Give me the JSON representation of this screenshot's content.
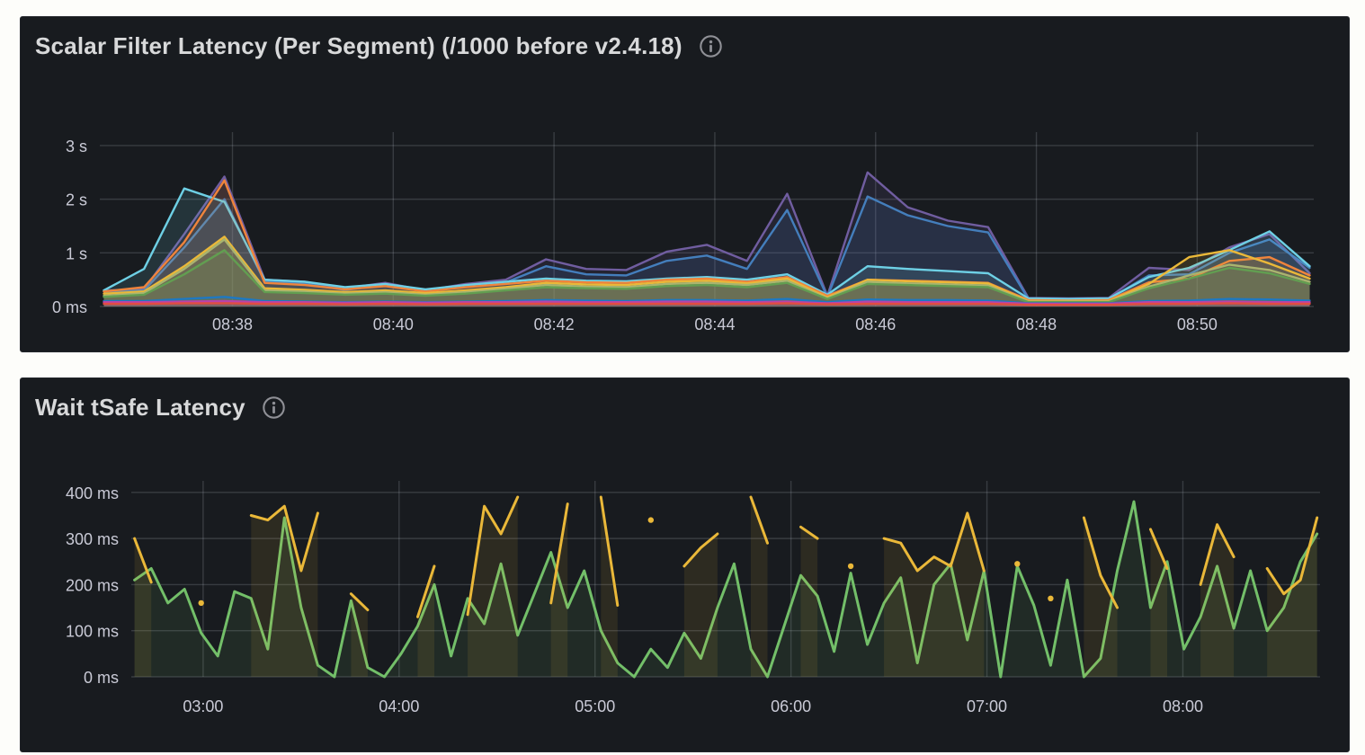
{
  "panels": [
    {
      "title": "Scalar Filter Latency (Per Segment) (/1000 before v2.4.18)",
      "info_icon": "info"
    },
    {
      "title": "Wait tSafe Latency",
      "info_icon": "info"
    }
  ],
  "colors": {
    "page_bg": "#fdfdfa",
    "panel_bg": "#181b1f",
    "title_text": "#d8d9da",
    "axis_text": "#c9cad6",
    "grid": "rgba(204,208,222,0.18)",
    "icon": "#8f9096"
  },
  "chart_data": [
    {
      "type": "line",
      "title": "Scalar Filter Latency (Per Segment) (/1000 before v2.4.18)",
      "unit": "seconds",
      "x_axis": "time of day (hh:mm)",
      "x_range": [
        36.35,
        51.45
      ],
      "x_start": 36.4,
      "x_step": 0.5,
      "x_ticks": [
        {
          "v": 38,
          "label": "08:38"
        },
        {
          "v": 40,
          "label": "08:40"
        },
        {
          "v": 42,
          "label": "08:42"
        },
        {
          "v": 44,
          "label": "08:44"
        },
        {
          "v": 46,
          "label": "08:46"
        },
        {
          "v": 48,
          "label": "08:48"
        },
        {
          "v": 50,
          "label": "08:50"
        }
      ],
      "y_ticks": [
        {
          "v": 0,
          "label": "0 ms"
        },
        {
          "v": 1,
          "label": "1 s"
        },
        {
          "v": 2,
          "label": "2 s"
        },
        {
          "v": 3,
          "label": "3 s"
        }
      ],
      "y_max": 3.25,
      "grid": true,
      "legend_position": "none",
      "fill_opacity": 0.14,
      "line_width": 2.4,
      "series": [
        {
          "name": "segment-purple",
          "color": "#705DA0",
          "values": [
            0.3,
            0.32,
            1.35,
            2.42,
            0.5,
            0.46,
            0.34,
            0.44,
            0.3,
            0.42,
            0.5,
            0.88,
            0.7,
            0.68,
            1.02,
            1.15,
            0.85,
            2.1,
            0.2,
            2.5,
            1.85,
            1.6,
            1.48,
            0.16,
            0.15,
            0.16,
            0.72,
            0.68,
            1.1,
            1.35,
            0.62
          ]
        },
        {
          "name": "segment-blue",
          "color": "#447EBC",
          "values": [
            0.28,
            0.3,
            1.1,
            2.0,
            0.46,
            0.42,
            0.31,
            0.4,
            0.28,
            0.38,
            0.45,
            0.75,
            0.6,
            0.58,
            0.85,
            0.95,
            0.7,
            1.8,
            0.18,
            2.05,
            1.7,
            1.5,
            1.38,
            0.14,
            0.13,
            0.14,
            0.58,
            0.6,
            1.0,
            1.25,
            0.72
          ]
        },
        {
          "name": "segment-cyan",
          "color": "#6ED0E5",
          "values": [
            0.3,
            0.7,
            2.2,
            1.95,
            0.5,
            0.46,
            0.36,
            0.42,
            0.32,
            0.4,
            0.46,
            0.52,
            0.48,
            0.47,
            0.52,
            0.55,
            0.5,
            0.6,
            0.22,
            0.75,
            0.7,
            0.66,
            0.62,
            0.15,
            0.14,
            0.15,
            0.55,
            0.72,
            1.05,
            1.4,
            0.75
          ]
        },
        {
          "name": "segment-orange",
          "color": "#EF843C",
          "values": [
            0.28,
            0.36,
            1.2,
            2.35,
            0.44,
            0.4,
            0.32,
            0.38,
            0.28,
            0.36,
            0.42,
            0.48,
            0.45,
            0.44,
            0.5,
            0.52,
            0.46,
            0.55,
            0.2,
            0.5,
            0.48,
            0.46,
            0.44,
            0.12,
            0.11,
            0.12,
            0.45,
            0.52,
            0.85,
            0.92,
            0.58
          ]
        },
        {
          "name": "segment-gold",
          "color": "#EAB839",
          "values": [
            0.24,
            0.28,
            0.75,
            1.3,
            0.34,
            0.31,
            0.27,
            0.3,
            0.25,
            0.3,
            0.36,
            0.44,
            0.41,
            0.4,
            0.46,
            0.48,
            0.43,
            0.52,
            0.17,
            0.5,
            0.47,
            0.45,
            0.43,
            0.1,
            0.1,
            0.1,
            0.42,
            0.92,
            1.05,
            0.8,
            0.52
          ]
        },
        {
          "name": "segment-sage",
          "color": "#A9B46F",
          "values": [
            0.2,
            0.25,
            0.7,
            1.25,
            0.3,
            0.28,
            0.24,
            0.27,
            0.22,
            0.27,
            0.33,
            0.4,
            0.37,
            0.36,
            0.42,
            0.44,
            0.4,
            0.48,
            0.15,
            0.46,
            0.43,
            0.41,
            0.39,
            0.09,
            0.09,
            0.09,
            0.37,
            0.58,
            0.78,
            0.68,
            0.46
          ]
        },
        {
          "name": "segment-green",
          "color": "#629E51",
          "values": [
            0.18,
            0.22,
            0.6,
            1.05,
            0.27,
            0.25,
            0.22,
            0.24,
            0.2,
            0.24,
            0.3,
            0.36,
            0.34,
            0.33,
            0.38,
            0.4,
            0.36,
            0.44,
            0.14,
            0.42,
            0.4,
            0.38,
            0.36,
            0.08,
            0.08,
            0.08,
            0.34,
            0.52,
            0.72,
            0.62,
            0.42
          ]
        },
        {
          "name": "segment-darkblue",
          "color": "#1F78C1",
          "values": [
            0.1,
            0.1,
            0.14,
            0.18,
            0.1,
            0.09,
            0.08,
            0.09,
            0.08,
            0.09,
            0.1,
            0.12,
            0.11,
            0.1,
            0.12,
            0.12,
            0.11,
            0.14,
            0.08,
            0.13,
            0.12,
            0.12,
            0.11,
            0.06,
            0.06,
            0.06,
            0.1,
            0.11,
            0.14,
            0.13,
            0.11
          ]
        },
        {
          "name": "segment-magenta",
          "color": "#BA43A9",
          "values": [
            0.08,
            0.08,
            0.09,
            0.1,
            0.08,
            0.08,
            0.07,
            0.08,
            0.07,
            0.08,
            0.08,
            0.09,
            0.08,
            0.08,
            0.09,
            0.09,
            0.08,
            0.09,
            0.06,
            0.09,
            0.08,
            0.08,
            0.08,
            0.05,
            0.05,
            0.05,
            0.08,
            0.08,
            0.09,
            0.08,
            0.08
          ]
        },
        {
          "name": "segment-red",
          "color": "#E24D42",
          "values": [
            0.05,
            0.05,
            0.06,
            0.06,
            0.05,
            0.05,
            0.04,
            0.05,
            0.04,
            0.05,
            0.05,
            0.05,
            0.05,
            0.05,
            0.05,
            0.05,
            0.05,
            0.06,
            0.04,
            0.05,
            0.05,
            0.05,
            0.05,
            0.03,
            0.03,
            0.03,
            0.05,
            0.05,
            0.06,
            0.05,
            0.05
          ]
        }
      ]
    },
    {
      "type": "line",
      "title": "Wait tSafe Latency",
      "unit": "ms",
      "x_axis": "time of day (hh:mm)",
      "x_range": [
        158,
        522
      ],
      "x_start": 159,
      "x_step": 5.1,
      "x_ticks": [
        {
          "v": 180,
          "label": "03:00"
        },
        {
          "v": 240,
          "label": "04:00"
        },
        {
          "v": 300,
          "label": "05:00"
        },
        {
          "v": 360,
          "label": "06:00"
        },
        {
          "v": 420,
          "label": "07:00"
        },
        {
          "v": 480,
          "label": "08:00"
        }
      ],
      "y_ticks": [
        {
          "v": 0,
          "label": "0 ms"
        },
        {
          "v": 100,
          "label": "100 ms"
        },
        {
          "v": 200,
          "label": "200 ms"
        },
        {
          "v": 300,
          "label": "300 ms"
        },
        {
          "v": 400,
          "label": "400 ms"
        }
      ],
      "y_max": 425,
      "grid": true,
      "legend_position": "none",
      "fill_opacity": 0.1,
      "line_width": 3,
      "series": [
        {
          "name": "wait-tsafe-green",
          "color": "#73BF69",
          "values": [
            210,
            235,
            160,
            190,
            95,
            45,
            185,
            170,
            60,
            345,
            150,
            25,
            0,
            165,
            20,
            0,
            50,
            110,
            200,
            45,
            170,
            115,
            245,
            90,
            180,
            270,
            150,
            230,
            100,
            30,
            0,
            60,
            20,
            95,
            40,
            150,
            245,
            60,
            0,
            110,
            220,
            175,
            55,
            225,
            70,
            160,
            215,
            30,
            200,
            245,
            80,
            230,
            0,
            240,
            155,
            25,
            210,
            0,
            40,
            230,
            380,
            150,
            250,
            60,
            130,
            240,
            105,
            230,
            100,
            150,
            250,
            310
          ]
        },
        {
          "name": "wait-tsafe-amber",
          "color": "#EAB839",
          "values": [
            300,
            205,
            null,
            null,
            160,
            null,
            null,
            350,
            340,
            370,
            230,
            355,
            null,
            180,
            145,
            null,
            null,
            130,
            240,
            null,
            135,
            370,
            310,
            390,
            null,
            160,
            375,
            null,
            390,
            155,
            null,
            340,
            null,
            240,
            280,
            310,
            null,
            390,
            290,
            null,
            325,
            300,
            null,
            240,
            null,
            300,
            290,
            230,
            260,
            240,
            355,
            230,
            null,
            245,
            null,
            170,
            null,
            345,
            220,
            150,
            null,
            320,
            235,
            null,
            200,
            330,
            260,
            null,
            235,
            180,
            210,
            345
          ]
        }
      ]
    }
  ]
}
